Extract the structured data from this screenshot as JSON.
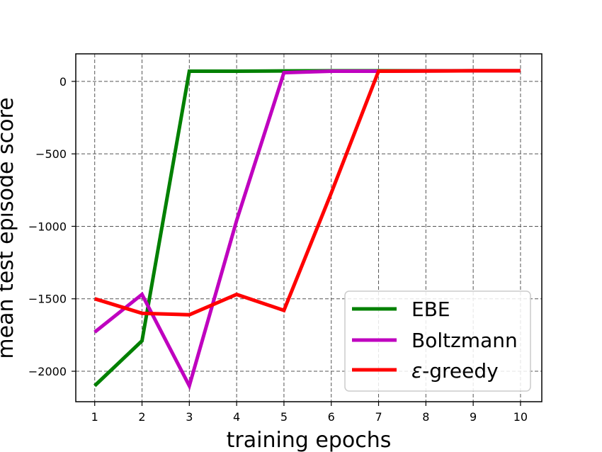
{
  "chart_data": {
    "type": "line",
    "title": "",
    "xlabel": "training epochs",
    "ylabel": "mean test episode score",
    "x": [
      1,
      2,
      3,
      4,
      5,
      6,
      7,
      8,
      9,
      10
    ],
    "xticks": [
      "1",
      "2",
      "3",
      "4",
      "5",
      "6",
      "7",
      "8",
      "9",
      "10"
    ],
    "yticks": [
      0,
      -500,
      -1000,
      -1500,
      -2000
    ],
    "ytick_labels": [
      "0",
      "−500",
      "−1000",
      "−1500",
      "−2000"
    ],
    "xlim": [
      0.6,
      10.45
    ],
    "ylim": [
      -2210,
      190
    ],
    "grid": true,
    "legend_position": "lower-right",
    "series": [
      {
        "name": "EBE",
        "color": "#008000",
        "values": [
          -2100,
          -1790,
          70,
          70,
          72,
          73,
          73,
          73,
          73,
          73
        ]
      },
      {
        "name": "Boltzmann",
        "color": "#bf00bf",
        "values": [
          -1730,
          -1470,
          -2100,
          -960,
          60,
          70,
          70,
          72,
          73,
          73
        ]
      },
      {
        "name": "-greedy",
        "name_prefix": "ε",
        "color": "#ff0000",
        "values": [
          -1500,
          -1600,
          -1610,
          -1470,
          -1580,
          -770,
          70,
          71,
          73,
          73
        ]
      }
    ]
  }
}
